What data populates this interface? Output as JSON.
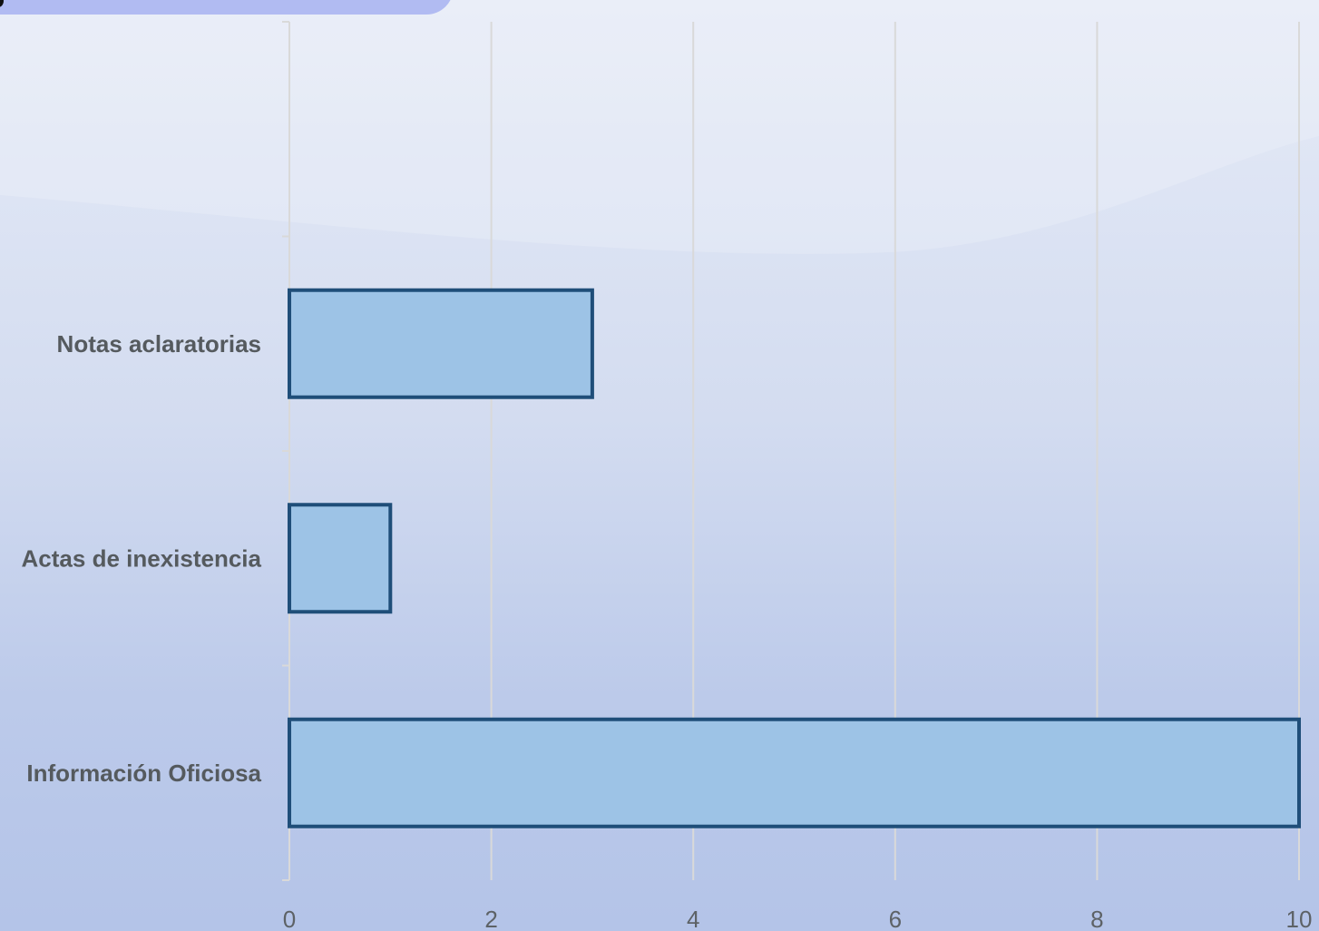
{
  "chart_data": {
    "type": "bar",
    "orientation": "horizontal",
    "categories": [
      "Notas aclaratorias",
      "Actas de inexistencia",
      "Información Oficiosa"
    ],
    "values": [
      3,
      1,
      10
    ],
    "xlim": [
      0,
      10
    ],
    "x_ticks": [
      "0",
      "2",
      "4",
      "6",
      "8",
      "10"
    ],
    "grid": "vertical",
    "colors": {
      "bar_fill": "#9dc3e6",
      "bar_stroke": "#1f4e79",
      "grid": "#d9d9d9"
    }
  }
}
